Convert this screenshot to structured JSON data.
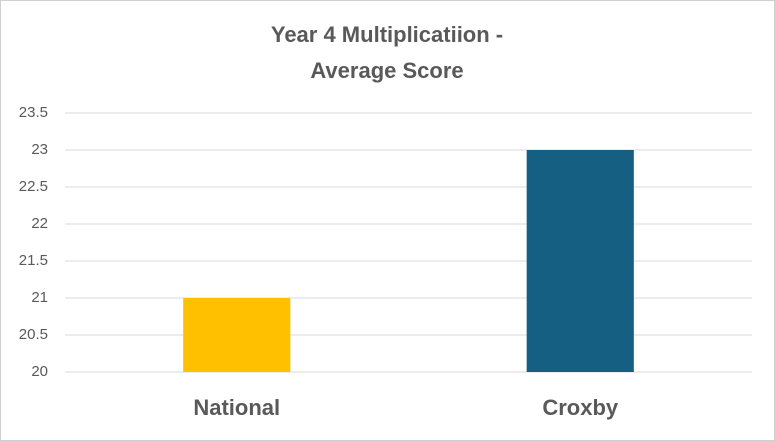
{
  "chart_data": {
    "type": "bar",
    "title": [
      "Year 4 Multiplicatiion  -",
      "Average Score"
    ],
    "categories": [
      "National",
      "Croxby"
    ],
    "values": [
      21,
      23
    ],
    "colors": [
      "#ffc000",
      "#156082"
    ],
    "ylim": [
      20,
      23.5
    ],
    "yticks": [
      20,
      20.5,
      21,
      21.5,
      22,
      22.5,
      23,
      23.5
    ],
    "grid": true
  }
}
